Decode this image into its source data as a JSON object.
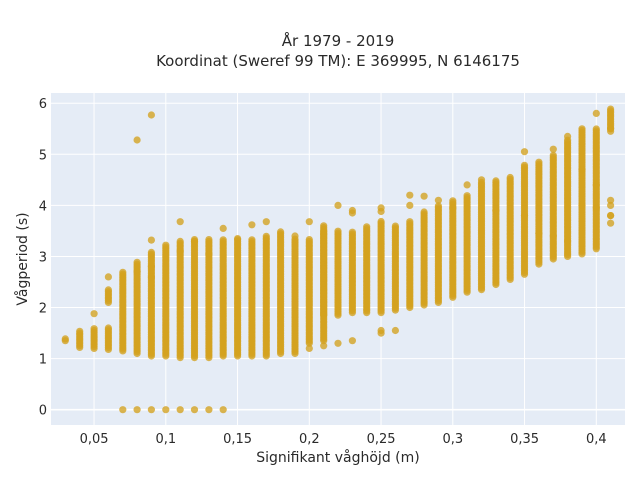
{
  "chart_data": {
    "type": "scatter",
    "title": "År 1979 - 2019",
    "subtitle": "Koordinat (Sweref 99 TM): E 369995, N 6146175",
    "xlabel": "Signifikant våghöjd (m)",
    "ylabel": "Vågperiod (s)",
    "xlim": [
      0.02,
      0.42
    ],
    "ylim": [
      -0.3,
      6.2
    ],
    "x_ticks": [
      0.05,
      0.1,
      0.15,
      0.2,
      0.25,
      0.3,
      0.35,
      0.4
    ],
    "x_tick_labels": [
      "0,05",
      "0,1",
      "0,15",
      "0,2",
      "0,25",
      "0,3",
      "0,35",
      "0,4"
    ],
    "y_ticks": [
      0,
      1,
      2,
      3,
      4,
      5,
      6
    ],
    "y_tick_labels": [
      "0",
      "1",
      "2",
      "3",
      "4",
      "5",
      "6"
    ],
    "grid": true,
    "legend": "none",
    "colors": {
      "marker": "#d4a21f",
      "plot_bg": "#e5ecf6",
      "grid": "#ffffff"
    },
    "series": [
      {
        "ranges": [
          [
            0.03,
            1.35,
            1.4
          ],
          [
            0.04,
            1.22,
            1.55
          ],
          [
            0.05,
            1.2,
            1.6
          ],
          [
            0.06,
            1.18,
            1.6
          ],
          [
            0.06,
            2.1,
            2.35
          ],
          [
            0.07,
            1.15,
            2.7
          ],
          [
            0.08,
            1.1,
            2.9
          ],
          [
            0.09,
            1.05,
            3.1
          ],
          [
            0.1,
            1.05,
            3.25
          ],
          [
            0.11,
            1.02,
            3.3
          ],
          [
            0.12,
            1.02,
            3.35
          ],
          [
            0.13,
            1.02,
            3.35
          ],
          [
            0.14,
            1.05,
            3.35
          ],
          [
            0.15,
            1.05,
            3.35
          ],
          [
            0.16,
            1.05,
            3.35
          ],
          [
            0.17,
            1.05,
            3.4
          ],
          [
            0.18,
            1.1,
            3.5
          ],
          [
            0.19,
            1.1,
            3.35
          ],
          [
            0.2,
            1.3,
            3.35
          ],
          [
            0.21,
            1.35,
            3.5
          ],
          [
            0.21,
            1.85,
            3.6
          ],
          [
            0.22,
            1.85,
            3.5
          ],
          [
            0.23,
            1.9,
            3.5
          ],
          [
            0.24,
            1.9,
            3.6
          ],
          [
            0.25,
            1.9,
            3.7
          ],
          [
            0.26,
            1.95,
            3.6
          ],
          [
            0.27,
            2.0,
            3.7
          ],
          [
            0.28,
            2.05,
            3.9
          ],
          [
            0.29,
            2.1,
            4.0
          ],
          [
            0.3,
            2.2,
            4.1
          ],
          [
            0.31,
            2.3,
            4.2
          ],
          [
            0.32,
            2.35,
            4.45
          ],
          [
            0.33,
            2.45,
            4.5
          ],
          [
            0.34,
            2.55,
            4.55
          ],
          [
            0.35,
            2.65,
            4.8
          ],
          [
            0.36,
            2.85,
            4.85
          ],
          [
            0.37,
            2.95,
            5.0
          ],
          [
            0.38,
            3.0,
            5.3
          ],
          [
            0.39,
            3.05,
            5.5
          ],
          [
            0.4,
            3.15,
            5.5
          ],
          [
            0.41,
            5.5,
            5.9
          ]
        ],
        "zero_row": {
          "x": [
            0.07,
            0.08,
            0.09,
            0.1,
            0.11,
            0.12,
            0.13,
            0.14
          ],
          "y": 0
        },
        "points": [
          [
            0.09,
            5.77
          ],
          [
            0.08,
            5.28
          ],
          [
            0.05,
            1.88
          ],
          [
            0.06,
            2.6
          ],
          [
            0.08,
            2.7
          ],
          [
            0.09,
            3.32
          ],
          [
            0.09,
            2.8
          ],
          [
            0.09,
            2.6
          ],
          [
            0.11,
            3.68
          ],
          [
            0.11,
            3.1
          ],
          [
            0.12,
            3.3
          ],
          [
            0.13,
            3.05
          ],
          [
            0.14,
            3.55
          ],
          [
            0.15,
            3.35
          ],
          [
            0.16,
            3.62
          ],
          [
            0.17,
            3.68
          ],
          [
            0.19,
            3.4
          ],
          [
            0.2,
            1.2
          ],
          [
            0.2,
            3.68
          ],
          [
            0.21,
            1.25
          ],
          [
            0.22,
            4.0
          ],
          [
            0.22,
            1.3
          ],
          [
            0.23,
            1.35
          ],
          [
            0.23,
            3.85
          ],
          [
            0.23,
            3.9
          ],
          [
            0.25,
            1.5
          ],
          [
            0.25,
            1.55
          ],
          [
            0.25,
            3.88
          ],
          [
            0.25,
            3.95
          ],
          [
            0.26,
            1.55
          ],
          [
            0.27,
            4.2
          ],
          [
            0.27,
            4.0
          ],
          [
            0.28,
            4.18
          ],
          [
            0.29,
            4.1
          ],
          [
            0.3,
            3.95
          ],
          [
            0.31,
            4.4
          ],
          [
            0.32,
            4.5
          ],
          [
            0.33,
            3.9
          ],
          [
            0.35,
            5.05
          ],
          [
            0.35,
            3.8
          ],
          [
            0.36,
            3.45
          ],
          [
            0.37,
            5.1
          ],
          [
            0.37,
            3.4
          ],
          [
            0.38,
            5.35
          ],
          [
            0.38,
            3.3
          ],
          [
            0.39,
            4.0
          ],
          [
            0.39,
            4.7
          ],
          [
            0.4,
            5.8
          ],
          [
            0.4,
            4.4
          ],
          [
            0.4,
            3.95
          ],
          [
            0.41,
            3.65
          ],
          [
            0.41,
            3.8
          ],
          [
            0.41,
            4.0
          ],
          [
            0.41,
            4.1
          ],
          [
            0.41,
            5.5
          ],
          [
            0.41,
            5.45
          ],
          [
            0.41,
            3.8
          ]
        ]
      }
    ]
  }
}
